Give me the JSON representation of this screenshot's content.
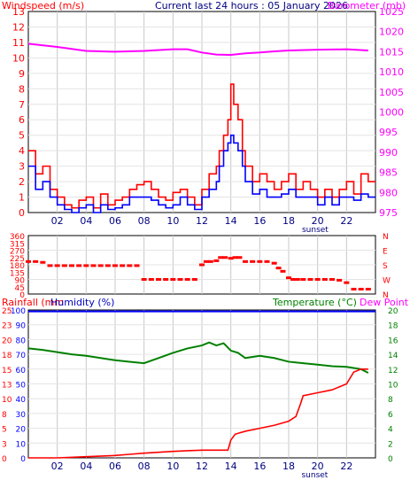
{
  "header": {
    "left": "Windspeed (m/s)",
    "center": "Current last 24 hours : 05 January 2026",
    "right": "Barometer (mb)"
  },
  "x_ticks": [
    "02",
    "04",
    "06",
    "08",
    "10",
    "12",
    "14",
    "16",
    "18",
    "20",
    "22"
  ],
  "sunset_label": "sunset",
  "wind_ticks": [
    "0",
    "1",
    "2",
    "3",
    "4",
    "5",
    "6",
    "7",
    "8",
    "9",
    "10",
    "11",
    "12",
    "13"
  ],
  "baro_ticks": [
    "975",
    "980",
    "985",
    "990",
    "995",
    "1000",
    "1005",
    "1010",
    "1015",
    "1020",
    "1025"
  ],
  "dir_ticks": [
    "0",
    "45",
    "90",
    "135",
    "180",
    "225",
    "270",
    "315",
    "360"
  ],
  "compass": [
    "N",
    "E",
    "S",
    "W",
    "N"
  ],
  "bottom_header": {
    "rainfall": "Rainfall (mm",
    "humidity": "Humidity (%)",
    "temperature": "Temperature (°C)",
    "dewpoint": "Dew Point"
  },
  "hum_ticks": [
    "0",
    "10",
    "20",
    "30",
    "40",
    "50",
    "60",
    "70",
    "80",
    "90",
    "100"
  ],
  "rain_ticks": [
    "0",
    "3",
    "5",
    "8",
    "10",
    "13",
    "15",
    "18",
    "20",
    "23",
    "25"
  ],
  "temp_ticks": [
    "0",
    "2",
    "4",
    "6",
    "8",
    "10",
    "12",
    "14",
    "16",
    "18",
    "20"
  ],
  "colors": {
    "wind_gust": "#ff0000",
    "wind_avg": "#0000ff",
    "barometer": "#ff00ff",
    "direction": "#ff0000",
    "rainfall": "#ff0000",
    "humidity": "#0000ff",
    "temperature": "#008000",
    "dewpoint": "#ff00ff",
    "grid": "#c8c8c8"
  },
  "chart_data": [
    {
      "type": "line",
      "title": "Current last 24 hours : 05 January 2026",
      "xlabel": "",
      "ylabel": "Windspeed (m/s)",
      "y2label": "Barometer (mb)",
      "ylim": [
        0,
        13
      ],
      "y2lim": [
        975,
        1025
      ],
      "xlim": [
        0,
        24
      ],
      "grid": true,
      "series": [
        {
          "name": "Windspeed (m/s)",
          "role": "gust",
          "x": [
            0,
            0.5,
            1,
            1.5,
            2,
            2.5,
            3,
            3.5,
            4,
            4.5,
            5,
            5.5,
            6,
            6.5,
            7,
            7.5,
            8,
            8.5,
            9,
            9.5,
            10,
            10.5,
            11,
            11.5,
            12,
            12.5,
            13,
            13.2,
            13.5,
            13.8,
            14,
            14.2,
            14.5,
            14.8,
            15,
            15.5,
            16,
            16.5,
            17,
            17.5,
            18,
            18.5,
            19,
            19.5,
            20,
            20.5,
            21,
            21.5,
            22,
            22.5,
            23,
            23.5
          ],
          "y": [
            4,
            2.5,
            3,
            1.5,
            1,
            0.5,
            0.3,
            0.8,
            1,
            0.3,
            1.2,
            0.5,
            0.8,
            1,
            1.5,
            1.8,
            2,
            1.5,
            1,
            0.8,
            1.3,
            1.5,
            1,
            0.5,
            1.5,
            2.5,
            3,
            4,
            5,
            6,
            8.3,
            7,
            6,
            4,
            3,
            2,
            2.5,
            2,
            1.5,
            2,
            2.5,
            1.5,
            2,
            1.5,
            1,
            1.5,
            1,
            1.5,
            2,
            1.2,
            2.5,
            2
          ]
        },
        {
          "name": "Windspeed (m/s)",
          "role": "average",
          "x": [
            0,
            0.5,
            1,
            1.5,
            2,
            2.5,
            3,
            3.5,
            4,
            4.5,
            5,
            5.5,
            6,
            6.5,
            7,
            7.5,
            8,
            8.5,
            9,
            9.5,
            10,
            10.5,
            11,
            11.5,
            12,
            12.5,
            13,
            13.2,
            13.5,
            13.8,
            14,
            14.2,
            14.5,
            14.8,
            15,
            15.5,
            16,
            16.5,
            17,
            17.5,
            18,
            18.5,
            19,
            19.5,
            20,
            20.5,
            21,
            21.5,
            22,
            22.5,
            23,
            23.5
          ],
          "y": [
            3,
            1.5,
            2,
            1,
            0.5,
            0.2,
            0,
            0.3,
            0.5,
            0,
            0.5,
            0.2,
            0.3,
            0.5,
            1,
            1,
            1,
            0.8,
            0.5,
            0.3,
            0.5,
            1,
            0.5,
            0.2,
            1,
            1.5,
            2,
            3,
            4,
            4.5,
            5,
            4.5,
            4,
            3,
            2,
            1.2,
            1.5,
            1,
            1,
            1.2,
            1.5,
            1,
            1,
            1,
            0.5,
            1,
            0.5,
            1,
            1,
            0.8,
            1.2,
            1
          ]
        },
        {
          "name": "Barometer (mb)",
          "axis": "y2",
          "x": [
            0,
            2,
            4,
            6,
            8,
            10,
            11,
            12,
            13,
            14,
            15,
            16,
            17,
            18,
            20,
            22,
            23.5
          ],
          "y": [
            1017,
            1016.2,
            1015.2,
            1015,
            1015.2,
            1015.6,
            1015.6,
            1014.8,
            1014.3,
            1014.2,
            1014.6,
            1014.8,
            1015.1,
            1015.3,
            1015.5,
            1015.6,
            1015.3
          ]
        }
      ]
    },
    {
      "type": "scatter",
      "ylabel": "Wind direction",
      "ylim": [
        0,
        360
      ],
      "xlim": [
        0,
        24
      ],
      "grid": true,
      "series": [
        {
          "name": "Wind direction",
          "x": [
            0,
            0.5,
            1,
            1.5,
            2,
            2.5,
            3,
            3.5,
            4,
            4.5,
            5,
            5.5,
            6,
            6.5,
            7,
            7.5,
            8,
            8.5,
            9,
            9.5,
            10,
            10.5,
            11,
            11.5,
            12,
            12.3,
            12.6,
            13,
            13.3,
            13.6,
            14,
            14.3,
            14.6,
            15,
            15.5,
            16,
            16.5,
            17,
            17.3,
            17.6,
            18,
            18.3,
            18.6,
            19,
            19.5,
            20,
            20.5,
            21,
            21.5,
            22,
            22.5,
            23,
            23.5
          ],
          "y": [
            200,
            200,
            195,
            175,
            175,
            175,
            175,
            175,
            175,
            175,
            175,
            175,
            175,
            175,
            175,
            175,
            90,
            90,
            90,
            90,
            90,
            90,
            90,
            90,
            180,
            200,
            200,
            205,
            225,
            225,
            220,
            225,
            225,
            200,
            200,
            200,
            200,
            190,
            160,
            140,
            100,
            90,
            90,
            90,
            90,
            90,
            90,
            90,
            85,
            70,
            30,
            30,
            30
          ]
        }
      ]
    },
    {
      "type": "line",
      "ylabel": "Humidity (%)",
      "y2label": "Temperature (°C)",
      "ylim": [
        0,
        100
      ],
      "y2lim": [
        0,
        20
      ],
      "xlim": [
        0,
        24
      ],
      "grid": true,
      "series": [
        {
          "name": "Humidity (%)",
          "x": [
            0,
            24
          ],
          "y": [
            99,
            99
          ]
        },
        {
          "name": "Temperature (°C)",
          "axis": "y2",
          "x": [
            0,
            1,
            2,
            3,
            4,
            5,
            6,
            7,
            8,
            9,
            10,
            11,
            12,
            12.5,
            13,
            13.5,
            14,
            14.5,
            15,
            16,
            17,
            18,
            19,
            20,
            21,
            22,
            23,
            23.5
          ],
          "y": [
            14.8,
            14.6,
            14.3,
            14,
            13.8,
            13.5,
            13.2,
            13,
            12.8,
            13.5,
            14.2,
            14.8,
            15.2,
            15.6,
            15.2,
            15.5,
            14.5,
            14.2,
            13.5,
            13.8,
            13.5,
            13,
            12.8,
            12.6,
            12.4,
            12.3,
            12,
            11.5
          ]
        },
        {
          "name": "Rainfall (mm",
          "axis": "rain",
          "x": [
            0,
            2,
            4,
            6,
            7,
            8,
            10,
            11,
            12,
            13,
            13.8,
            14,
            14.3,
            15,
            16,
            17,
            18,
            18.5,
            18.8,
            19,
            20,
            21,
            21.5,
            22,
            22.5,
            23,
            23.5
          ],
          "y": [
            0,
            0,
            0.2,
            0.4,
            0.6,
            0.8,
            1.1,
            1.2,
            1.3,
            1.3,
            1.3,
            3,
            4,
            4.5,
            5,
            5.5,
            6.2,
            7,
            9,
            10.5,
            11,
            11.5,
            12,
            12.5,
            14.5,
            15,
            15
          ]
        }
      ]
    }
  ]
}
